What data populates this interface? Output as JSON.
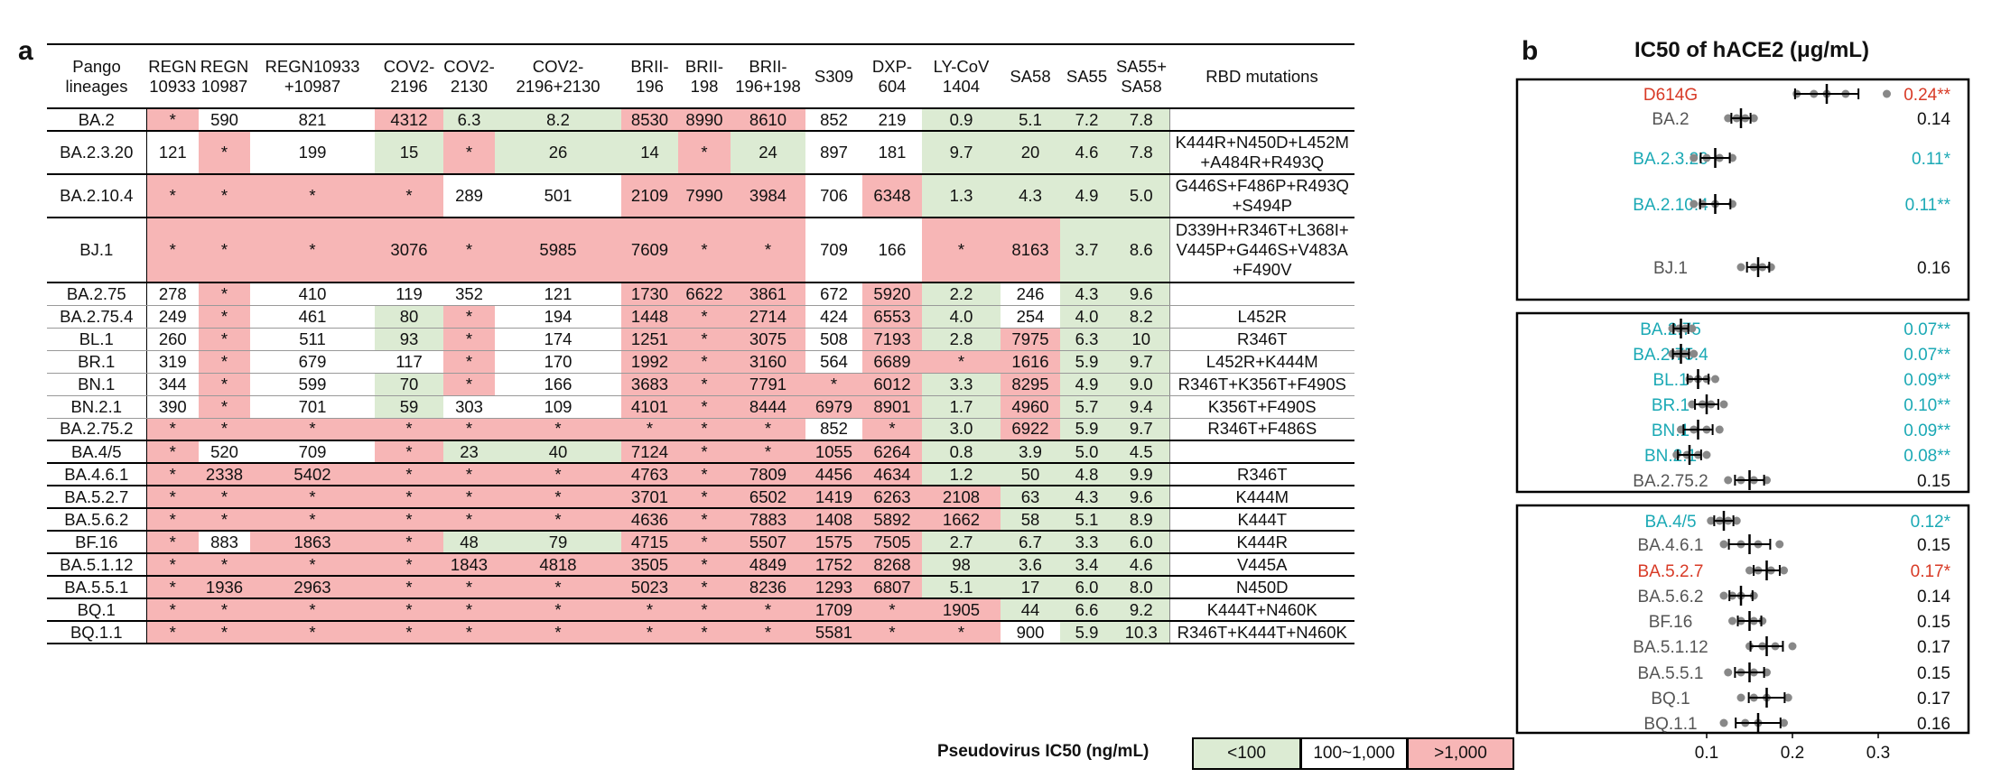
{
  "panel_a": {
    "letter": "a",
    "headers": [
      [
        "Pango",
        "lineages"
      ],
      [
        "REGN",
        "10933"
      ],
      [
        "REGN",
        "10987"
      ],
      [
        "REGN10933",
        "+10987"
      ],
      [
        "COV2-",
        "2196"
      ],
      [
        "COV2-",
        "2130"
      ],
      [
        "COV2-",
        "2196+2130"
      ],
      [
        "BRII-",
        "196"
      ],
      [
        "BRII-",
        "198"
      ],
      [
        "BRII-",
        "196+198"
      ],
      [
        "S309",
        ""
      ],
      [
        "DXP-",
        "604"
      ],
      [
        "LY-CoV",
        "1404"
      ],
      [
        "SA58",
        ""
      ],
      [
        "SA55",
        ""
      ],
      [
        "SA55+",
        "SA58"
      ],
      [
        "RBD mutations",
        ""
      ]
    ],
    "rows": [
      {
        "lineage": "BA.2",
        "values": [
          "*",
          "590",
          "821",
          "4312",
          "6.3",
          "8.2",
          "8530",
          "8990",
          "8610",
          "852",
          "219",
          "0.9",
          "5.1",
          "7.2",
          "7.8"
        ],
        "colors": [
          "r",
          "w",
          "w",
          "r",
          "g",
          "g",
          "r",
          "r",
          "r",
          "w",
          "w",
          "g",
          "g",
          "g",
          "g"
        ],
        "mutations": [
          ""
        ]
      },
      {
        "lineage": "BA.2.3.20",
        "values": [
          "121",
          "*",
          "199",
          "15",
          "*",
          "26",
          "14",
          "*",
          "24",
          "897",
          "181",
          "9.7",
          "20",
          "4.6",
          "7.8"
        ],
        "colors": [
          "w",
          "r",
          "w",
          "g",
          "r",
          "g",
          "g",
          "r",
          "g",
          "w",
          "w",
          "g",
          "g",
          "g",
          "g"
        ],
        "mutations": [
          "K444R+N450D+L452M",
          "+A484R+R493Q"
        ]
      },
      {
        "lineage": "BA.2.10.4",
        "values": [
          "*",
          "*",
          "*",
          "*",
          "289",
          "501",
          "2109",
          "7990",
          "3984",
          "706",
          "6348",
          "1.3",
          "4.3",
          "4.9",
          "5.0"
        ],
        "colors": [
          "r",
          "r",
          "r",
          "r",
          "w",
          "w",
          "r",
          "r",
          "r",
          "w",
          "r",
          "g",
          "g",
          "g",
          "g"
        ],
        "mutations": [
          "G446S+F486P+R493Q",
          "+S494P"
        ]
      },
      {
        "lineage": "BJ.1",
        "values": [
          "*",
          "*",
          "*",
          "3076",
          "*",
          "5985",
          "7609",
          "*",
          "*",
          "709",
          "166",
          "*",
          "8163",
          "3.7",
          "8.6"
        ],
        "colors": [
          "r",
          "r",
          "r",
          "r",
          "r",
          "r",
          "r",
          "r",
          "r",
          "w",
          "w",
          "r",
          "r",
          "g",
          "g"
        ],
        "mutations": [
          "D339H+R346T+L368I+",
          "V445P+G446S+V483A",
          "+F490V"
        ]
      },
      {
        "lineage": "BA.2.75",
        "values": [
          "278",
          "*",
          "410",
          "119",
          "352",
          "121",
          "1730",
          "6622",
          "3861",
          "672",
          "5920",
          "2.2",
          "246",
          "4.3",
          "9.6"
        ],
        "colors": [
          "w",
          "r",
          "w",
          "w",
          "w",
          "w",
          "r",
          "r",
          "r",
          "w",
          "r",
          "g",
          "w",
          "g",
          "g"
        ],
        "mutations": [
          ""
        ]
      },
      {
        "lineage": "BA.2.75.4",
        "values": [
          "249",
          "*",
          "461",
          "80",
          "*",
          "194",
          "1448",
          "*",
          "2714",
          "424",
          "6553",
          "4.0",
          "254",
          "4.0",
          "8.2"
        ],
        "colors": [
          "w",
          "r",
          "w",
          "g",
          "r",
          "w",
          "r",
          "r",
          "r",
          "w",
          "r",
          "g",
          "w",
          "g",
          "g"
        ],
        "mutations": [
          "L452R"
        ]
      },
      {
        "lineage": "BL.1",
        "values": [
          "260",
          "*",
          "511",
          "93",
          "*",
          "174",
          "1251",
          "*",
          "3075",
          "508",
          "7193",
          "2.8",
          "7975",
          "6.3",
          "10"
        ],
        "colors": [
          "w",
          "r",
          "w",
          "g",
          "r",
          "w",
          "r",
          "r",
          "r",
          "w",
          "r",
          "g",
          "r",
          "g",
          "g"
        ],
        "mutations": [
          "R346T"
        ]
      },
      {
        "lineage": "BR.1",
        "values": [
          "319",
          "*",
          "679",
          "117",
          "*",
          "170",
          "1992",
          "*",
          "3160",
          "564",
          "6689",
          "*",
          "1616",
          "5.9",
          "9.7"
        ],
        "colors": [
          "w",
          "r",
          "w",
          "w",
          "r",
          "w",
          "r",
          "r",
          "r",
          "w",
          "r",
          "r",
          "r",
          "g",
          "g"
        ],
        "mutations": [
          "L452R+K444M"
        ]
      },
      {
        "lineage": "BN.1",
        "values": [
          "344",
          "*",
          "599",
          "70",
          "*",
          "166",
          "3683",
          "*",
          "7791",
          "*",
          "6012",
          "3.3",
          "8295",
          "4.9",
          "9.0"
        ],
        "colors": [
          "w",
          "r",
          "w",
          "g",
          "r",
          "w",
          "r",
          "r",
          "r",
          "r",
          "r",
          "g",
          "r",
          "g",
          "g"
        ],
        "mutations": [
          "R346T+K356T+F490S"
        ]
      },
      {
        "lineage": "BN.2.1",
        "values": [
          "390",
          "*",
          "701",
          "59",
          "303",
          "109",
          "4101",
          "*",
          "8444",
          "6979",
          "8901",
          "1.7",
          "4960",
          "5.7",
          "9.4"
        ],
        "colors": [
          "w",
          "r",
          "w",
          "g",
          "w",
          "w",
          "r",
          "r",
          "r",
          "r",
          "r",
          "g",
          "r",
          "g",
          "g"
        ],
        "mutations": [
          "K356T+F490S"
        ]
      },
      {
        "lineage": "BA.2.75.2",
        "values": [
          "*",
          "*",
          "*",
          "*",
          "*",
          "*",
          "*",
          "*",
          "*",
          "852",
          "*",
          "3.0",
          "6922",
          "5.9",
          "9.7"
        ],
        "colors": [
          "r",
          "r",
          "r",
          "r",
          "r",
          "r",
          "r",
          "r",
          "r",
          "w",
          "r",
          "g",
          "r",
          "g",
          "g"
        ],
        "mutations": [
          "R346T+F486S"
        ]
      },
      {
        "lineage": "BA.4/5",
        "values": [
          "*",
          "520",
          "709",
          "*",
          "23",
          "40",
          "7124",
          "*",
          "*",
          "1055",
          "6264",
          "0.8",
          "3.9",
          "5.0",
          "4.5"
        ],
        "colors": [
          "r",
          "w",
          "w",
          "r",
          "g",
          "g",
          "r",
          "r",
          "r",
          "r",
          "r",
          "g",
          "g",
          "g",
          "g"
        ],
        "mutations": [
          ""
        ]
      },
      {
        "lineage": "BA.4.6.1",
        "values": [
          "*",
          "2338",
          "5402",
          "*",
          "*",
          "*",
          "4763",
          "*",
          "7809",
          "4456",
          "4634",
          "1.2",
          "50",
          "4.8",
          "9.9"
        ],
        "colors": [
          "r",
          "r",
          "r",
          "r",
          "r",
          "r",
          "r",
          "r",
          "r",
          "r",
          "r",
          "g",
          "g",
          "g",
          "g"
        ],
        "mutations": [
          "R346T"
        ]
      },
      {
        "lineage": "BA.5.2.7",
        "values": [
          "*",
          "*",
          "*",
          "*",
          "*",
          "*",
          "3701",
          "*",
          "6502",
          "1419",
          "6263",
          "2108",
          "63",
          "4.3",
          "9.6"
        ],
        "colors": [
          "r",
          "r",
          "r",
          "r",
          "r",
          "r",
          "r",
          "r",
          "r",
          "r",
          "r",
          "r",
          "g",
          "g",
          "g"
        ],
        "mutations": [
          "K444M"
        ]
      },
      {
        "lineage": "BA.5.6.2",
        "values": [
          "*",
          "*",
          "*",
          "*",
          "*",
          "*",
          "4636",
          "*",
          "7883",
          "1408",
          "5892",
          "1662",
          "58",
          "5.1",
          "8.9"
        ],
        "colors": [
          "r",
          "r",
          "r",
          "r",
          "r",
          "r",
          "r",
          "r",
          "r",
          "r",
          "r",
          "r",
          "g",
          "g",
          "g"
        ],
        "mutations": [
          "K444T"
        ]
      },
      {
        "lineage": "BF.16",
        "values": [
          "*",
          "883",
          "1863",
          "*",
          "48",
          "79",
          "4715",
          "*",
          "5507",
          "1575",
          "7505",
          "2.7",
          "6.7",
          "3.3",
          "6.0"
        ],
        "colors": [
          "r",
          "w",
          "r",
          "r",
          "g",
          "g",
          "r",
          "r",
          "r",
          "r",
          "r",
          "g",
          "g",
          "g",
          "g"
        ],
        "mutations": [
          "K444R"
        ]
      },
      {
        "lineage": "BA.5.1.12",
        "values": [
          "*",
          "*",
          "*",
          "*",
          "1843",
          "4818",
          "3505",
          "*",
          "4849",
          "1752",
          "8268",
          "98",
          "3.6",
          "3.4",
          "4.6"
        ],
        "colors": [
          "r",
          "r",
          "r",
          "r",
          "r",
          "r",
          "r",
          "r",
          "r",
          "r",
          "r",
          "g",
          "g",
          "g",
          "g"
        ],
        "mutations": [
          "V445A"
        ]
      },
      {
        "lineage": "BA.5.5.1",
        "values": [
          "*",
          "1936",
          "2963",
          "*",
          "*",
          "*",
          "5023",
          "*",
          "8236",
          "1293",
          "6807",
          "5.1",
          "17",
          "6.0",
          "8.0"
        ],
        "colors": [
          "r",
          "r",
          "r",
          "r",
          "r",
          "r",
          "r",
          "r",
          "r",
          "r",
          "r",
          "g",
          "g",
          "g",
          "g"
        ],
        "mutations": [
          "N450D"
        ]
      },
      {
        "lineage": "BQ.1",
        "values": [
          "*",
          "*",
          "*",
          "*",
          "*",
          "*",
          "*",
          "*",
          "*",
          "1709",
          "*",
          "1905",
          "44",
          "6.6",
          "9.2"
        ],
        "colors": [
          "r",
          "r",
          "r",
          "r",
          "r",
          "r",
          "r",
          "r",
          "r",
          "r",
          "r",
          "r",
          "g",
          "g",
          "g"
        ],
        "mutations": [
          "K444T+N460K"
        ]
      },
      {
        "lineage": "BQ.1.1",
        "values": [
          "*",
          "*",
          "*",
          "*",
          "*",
          "*",
          "*",
          "*",
          "*",
          "5581",
          "*",
          "*",
          "900",
          "5.9",
          "10.3"
        ],
        "colors": [
          "r",
          "r",
          "r",
          "r",
          "r",
          "r",
          "r",
          "r",
          "r",
          "r",
          "r",
          "r",
          "w",
          "g",
          "g"
        ],
        "mutations": [
          "R346T+K444T+N460K"
        ]
      }
    ],
    "legend": {
      "title": "Pseudovirus IC50 (ng/mL)",
      "items": [
        {
          "label": "<100",
          "color": "#dcebd3"
        },
        {
          "label": "100~1,000",
          "color": "#ffffff"
        },
        {
          "label": ">1,000",
          "color": "#f7b6b6"
        }
      ]
    }
  },
  "panel_b": {
    "letter": "b",
    "title": "IC50 of hACE2 (μg/mL)",
    "colors": {
      "cyan": "#1ba9b5",
      "red": "#d83a26",
      "gray": "#555555"
    },
    "chart_data": {
      "type": "scatter",
      "title": "IC50 of hACE2 (μg/mL)",
      "xlabel": "",
      "ylabel": "",
      "xlim": [
        0.0,
        0.35
      ],
      "xticks": [
        0.1,
        0.2,
        0.3
      ],
      "groups": [
        [
          {
            "name": "D614G",
            "mean": 0.24,
            "label": "0.24**",
            "color": "red",
            "points": [
              0.205,
              0.225,
              0.24,
              0.262,
              0.31
            ]
          },
          {
            "name": "BA.2",
            "mean": 0.14,
            "label": "0.14",
            "color": "gray",
            "points": [
              0.125,
              0.135,
              0.145,
              0.155
            ]
          },
          {
            "name": "BA.2.3.20",
            "mean": 0.11,
            "label": "0.11*",
            "color": "cyan",
            "points": [
              0.085,
              0.1,
              0.115,
              0.13
            ]
          },
          {
            "name": "BA.2.10.4",
            "mean": 0.11,
            "label": "0.11**",
            "color": "cyan",
            "points": [
              0.085,
              0.095,
              0.11,
              0.13
            ]
          },
          {
            "name": "BJ.1",
            "mean": 0.16,
            "label": "0.16",
            "color": "gray",
            "points": [
              0.14,
              0.155,
              0.165,
              0.175
            ]
          }
        ],
        [
          {
            "name": "BA.2.75",
            "mean": 0.07,
            "label": "0.07**",
            "color": "cyan",
            "points": [
              0.06,
              0.068,
              0.075,
              0.083
            ]
          },
          {
            "name": "BA.2.75.4",
            "mean": 0.07,
            "label": "0.07**",
            "color": "cyan",
            "points": [
              0.06,
              0.067,
              0.074,
              0.085
            ]
          },
          {
            "name": "BL.1",
            "mean": 0.09,
            "label": "0.09**",
            "color": "cyan",
            "points": [
              0.08,
              0.09,
              0.1,
              0.11
            ]
          },
          {
            "name": "BR.1",
            "mean": 0.1,
            "label": "0.10**",
            "color": "cyan",
            "points": [
              0.083,
              0.095,
              0.105,
              0.12
            ]
          },
          {
            "name": "BN.1",
            "mean": 0.09,
            "label": "0.09**",
            "color": "cyan",
            "points": [
              0.07,
              0.085,
              0.1,
              0.115
            ]
          },
          {
            "name": "BN.2.1",
            "mean": 0.08,
            "label": "0.08**",
            "color": "cyan",
            "points": [
              0.065,
              0.077,
              0.09,
              0.1
            ]
          },
          {
            "name": "BA.2.75.2",
            "mean": 0.15,
            "label": "0.15",
            "color": "gray",
            "points": [
              0.125,
              0.14,
              0.155,
              0.17
            ]
          }
        ],
        [
          {
            "name": "BA.4/5",
            "mean": 0.12,
            "label": "0.12*",
            "color": "cyan",
            "points": [
              0.105,
              0.115,
              0.125,
              0.135
            ]
          },
          {
            "name": "BA.4.6.1",
            "mean": 0.15,
            "label": "0.15",
            "color": "gray",
            "points": [
              0.12,
              0.14,
              0.16,
              0.185
            ]
          },
          {
            "name": "BA.5.2.7",
            "mean": 0.17,
            "label": "0.17*",
            "color": "red",
            "points": [
              0.15,
              0.16,
              0.175,
              0.19
            ]
          },
          {
            "name": "BA.5.6.2",
            "mean": 0.14,
            "label": "0.14",
            "color": "gray",
            "points": [
              0.12,
              0.13,
              0.14,
              0.155
            ]
          },
          {
            "name": "BF.16",
            "mean": 0.15,
            "label": "0.15",
            "color": "gray",
            "points": [
              0.13,
              0.14,
              0.155,
              0.165
            ]
          },
          {
            "name": "BA.5.1.12",
            "mean": 0.17,
            "label": "0.17",
            "color": "gray",
            "points": [
              0.15,
              0.165,
              0.18,
              0.2
            ]
          },
          {
            "name": "BA.5.5.1",
            "mean": 0.15,
            "label": "0.15",
            "color": "gray",
            "points": [
              0.125,
              0.14,
              0.155,
              0.17
            ]
          },
          {
            "name": "BQ.1",
            "mean": 0.17,
            "label": "0.17",
            "color": "gray",
            "points": [
              0.14,
              0.155,
              0.17,
              0.195
            ]
          },
          {
            "name": "BQ.1.1",
            "mean": 0.16,
            "label": "0.16",
            "color": "gray",
            "points": [
              0.12,
              0.145,
              0.16,
              0.19
            ]
          }
        ]
      ]
    }
  }
}
